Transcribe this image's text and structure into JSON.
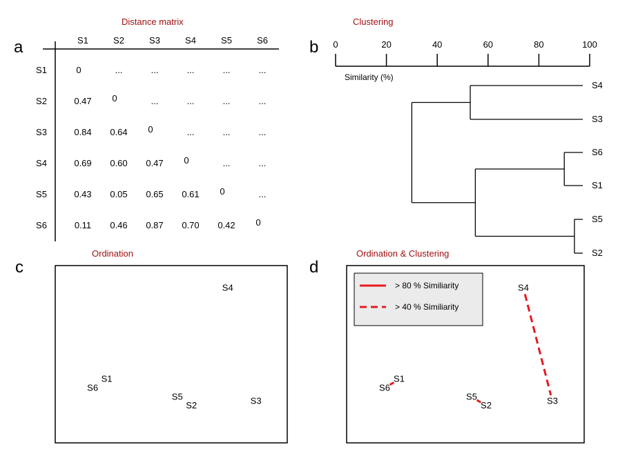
{
  "panels": {
    "a": {
      "letter": "a",
      "title": "Distance matrix"
    },
    "b": {
      "letter": "b",
      "title": "Clustering"
    },
    "c": {
      "letter": "c",
      "title": "Ordination"
    },
    "d": {
      "letter": "d",
      "title": "Ordination & Clustering"
    }
  },
  "matrix": {
    "samples": [
      "S1",
      "S2",
      "S3",
      "S4",
      "S5",
      "S6"
    ],
    "rows": [
      [
        "0",
        "...",
        "...",
        "...",
        "...",
        "..."
      ],
      [
        "0.47",
        "0",
        "...",
        "...",
        "...",
        "..."
      ],
      [
        "0.84",
        "0.64",
        "0",
        "...",
        "...",
        "..."
      ],
      [
        "0.69",
        "0.60",
        "0.47",
        "0",
        "...",
        "..."
      ],
      [
        "0.43",
        "0.05",
        "0.65",
        "0.61",
        "0",
        "..."
      ],
      [
        "0.11",
        "0.46",
        "0.87",
        "0.70",
        "0.42",
        "0"
      ]
    ]
  },
  "dendrogram": {
    "axis_label": "Similarity (%)",
    "ticks": [
      "0",
      "20",
      "40",
      "60",
      "80",
      "100"
    ],
    "leaves": [
      "S4",
      "S3",
      "S6",
      "S1",
      "S5",
      "S2"
    ],
    "merges": [
      {
        "a": "S6",
        "b": "S1",
        "similarity": 90
      },
      {
        "a": "S5",
        "b": "S2",
        "similarity": 94
      },
      {
        "a": "S4",
        "b": "S3",
        "similarity": 53
      },
      {
        "a": "S6-S1",
        "b": "S5-S2",
        "similarity": 55
      },
      {
        "a": "S4-S3",
        "b": "S6-S1-S5-S2",
        "similarity": 30
      }
    ]
  },
  "ordination": {
    "points": [
      {
        "label": "S4",
        "x": 0.78,
        "y": 0.95
      },
      {
        "label": "S1",
        "x": 0.18,
        "y": 0.33
      },
      {
        "label": "S6",
        "x": 0.11,
        "y": 0.27
      },
      {
        "label": "S5",
        "x": 0.53,
        "y": 0.21
      },
      {
        "label": "S2",
        "x": 0.6,
        "y": 0.15
      },
      {
        "label": "S3",
        "x": 0.92,
        "y": 0.18
      }
    ]
  },
  "legend": {
    "items": [
      {
        "label": "> 80 % Similiarity",
        "style": "solid"
      },
      {
        "label": "> 40 % Similiarity",
        "style": "dashed"
      }
    ]
  },
  "colors": {
    "title": "#a01010",
    "link": "#e8191c",
    "legend_bg": "#ebebeb"
  }
}
